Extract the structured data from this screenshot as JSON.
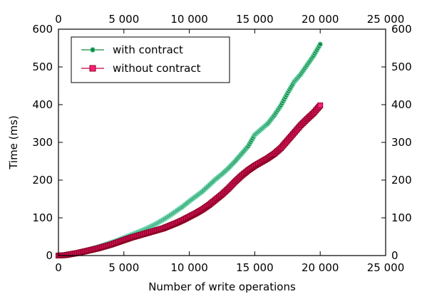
{
  "chart_data": {
    "type": "scatter",
    "title": "",
    "xlabel": "Number of write operations",
    "ylabel": "Time (ms)",
    "xlim": [
      0,
      25000
    ],
    "ylim": [
      0,
      600
    ],
    "x_ticks": [
      0,
      5000,
      10000,
      15000,
      20000,
      25000
    ],
    "x_tick_labels": [
      "0",
      "5 000",
      "10 000",
      "15 000",
      "20 000",
      "25 000"
    ],
    "y_ticks": [
      0,
      100,
      200,
      300,
      400,
      500,
      600
    ],
    "y_tick_labels": [
      "0",
      "100",
      "200",
      "300",
      "400",
      "500",
      "600"
    ],
    "grid": false,
    "mirrored_axes": true,
    "legend_position": "top-left",
    "series": [
      {
        "name": "with contract",
        "color": "#1a8a3a",
        "marker": "circle",
        "x": [
          0,
          500,
          1000,
          1500,
          2000,
          2500,
          3000,
          3500,
          4000,
          4500,
          5000,
          5500,
          6000,
          6500,
          7000,
          7500,
          8000,
          8500,
          9000,
          9500,
          10000,
          10500,
          11000,
          11500,
          12000,
          12500,
          13000,
          13500,
          14000,
          14500,
          15000,
          15500,
          16000,
          16500,
          17000,
          17500,
          18000,
          18500,
          19000,
          19500,
          20000
        ],
        "values": [
          0,
          2,
          5,
          8,
          12,
          17,
          22,
          28,
          34,
          40,
          47,
          54,
          61,
          68,
          76,
          85,
          95,
          106,
          118,
          130,
          144,
          157,
          170,
          186,
          202,
          216,
          232,
          250,
          270,
          290,
          320,
          335,
          350,
          372,
          398,
          430,
          460,
          480,
          505,
          530,
          560
        ]
      },
      {
        "name": "without contract",
        "color": "#c8003c",
        "marker": "square",
        "x": [
          0,
          500,
          1000,
          1500,
          2000,
          2500,
          3000,
          3500,
          4000,
          4500,
          5000,
          5500,
          6000,
          6500,
          7000,
          7500,
          8000,
          8500,
          9000,
          9500,
          10000,
          10500,
          11000,
          11500,
          12000,
          12500,
          13000,
          13500,
          14000,
          14500,
          15000,
          15500,
          16000,
          16500,
          17000,
          17500,
          18000,
          18500,
          19000,
          19500,
          20000
        ],
        "values": [
          0,
          1,
          4,
          7,
          11,
          15,
          19,
          24,
          29,
          35,
          41,
          47,
          52,
          57,
          62,
          67,
          72,
          79,
          86,
          94,
          103,
          112,
          122,
          134,
          148,
          162,
          178,
          196,
          212,
          226,
          238,
          248,
          258,
          270,
          285,
          305,
          325,
          345,
          362,
          378,
          398
        ]
      }
    ]
  }
}
